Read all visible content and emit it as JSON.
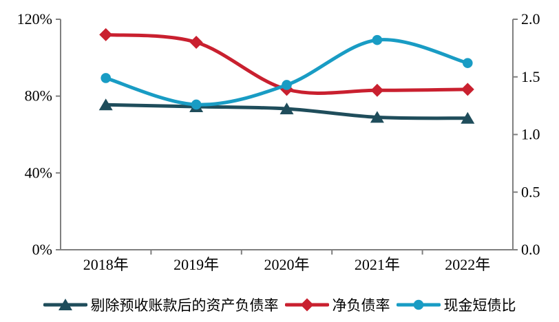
{
  "chart_data": {
    "type": "line",
    "title": "",
    "smoothed": true,
    "grid": false,
    "legend_position": "bottom",
    "axis_color": "#7F7F7F",
    "text_color": "#000000",
    "background_color": "#FFFFFF",
    "categories": [
      "2018年",
      "2019年",
      "2020年",
      "2021年",
      "2022年"
    ],
    "series": [
      {
        "name": "剔除预收账款后的资产负债率",
        "axis": "left",
        "marker": "triangle",
        "color": "#1F4D5B",
        "values": [
          75.5,
          74.5,
          73.4,
          69.0,
          68.5
        ]
      },
      {
        "name": "净负债率",
        "axis": "left",
        "marker": "diamond",
        "color": "#C9202F",
        "values": [
          112.0,
          108.0,
          83.5,
          83.0,
          83.5
        ]
      },
      {
        "name": "现金短债比",
        "axis": "right",
        "marker": "circle",
        "color": "#199CC4",
        "values": [
          1.49,
          1.26,
          1.43,
          1.82,
          1.62
        ]
      }
    ],
    "left_axis": {
      "min": 0,
      "max": 120,
      "unit": "%",
      "tick_labels": [
        "0%",
        "40%",
        "80%",
        "120%"
      ]
    },
    "right_axis": {
      "min": 0.0,
      "max": 2.0,
      "tick_labels": [
        "0.0",
        "0.5",
        "1.0",
        "1.5",
        "2.0"
      ]
    }
  }
}
